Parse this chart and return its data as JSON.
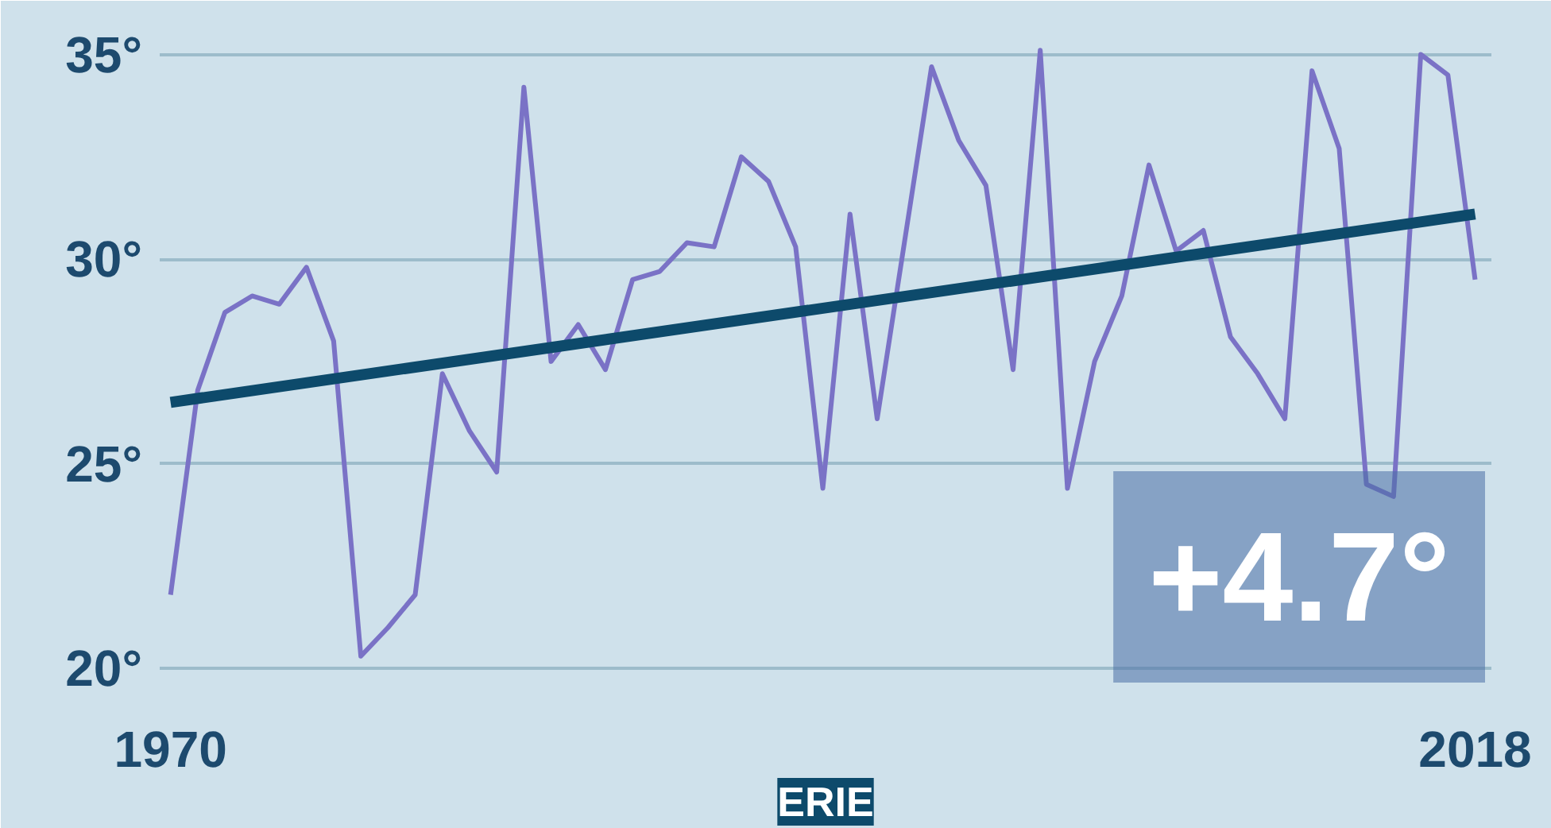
{
  "chart_data": {
    "type": "line",
    "title": "ERIE",
    "annotations": [
      "+4.7°"
    ],
    "series": [
      {
        "color": "#7a72c6",
        "x": [
          1970,
          1971,
          1972,
          1973,
          1974,
          1975,
          1976,
          1977,
          1978,
          1979,
          1980,
          1981,
          1982,
          1983,
          1984,
          1985,
          1986,
          1987,
          1988,
          1989,
          1990,
          1991,
          1992,
          1993,
          1994,
          1995,
          1996,
          1997,
          1998,
          1999,
          2000,
          2001,
          2002,
          2003,
          2004,
          2005,
          2006,
          2007,
          2008,
          2009,
          2010,
          2011,
          2012,
          2013,
          2014,
          2015,
          2016,
          2017,
          2018
        ],
        "values": [
          21.8,
          26.8,
          28.7,
          29.1,
          28.9,
          29.8,
          28.0,
          20.3,
          21.0,
          21.8,
          27.2,
          25.8,
          24.8,
          34.2,
          27.5,
          28.4,
          27.3,
          29.5,
          29.7,
          30.4,
          30.3,
          32.5,
          31.9,
          30.3,
          24.4,
          31.1,
          26.1,
          30.4,
          34.7,
          32.9,
          31.8,
          27.3,
          35.1,
          24.4,
          27.5,
          29.1,
          32.3,
          30.2,
          30.7,
          28.1,
          27.2,
          26.1,
          34.6,
          32.7,
          24.5,
          24.2,
          35.0,
          34.5,
          29.5
        ]
      },
      {
        "color": "#0d4a6b",
        "x": [
          1970,
          2018
        ],
        "values": [
          26.5,
          31.1
        ]
      }
    ],
    "xlim": [
      1969.6,
      2018.6
    ],
    "ylim": [
      19.5,
      36
    ],
    "xticks": [
      1970,
      2018
    ],
    "yticks": [
      {
        "value": 20,
        "label": "20°"
      },
      {
        "value": 25,
        "label": "25°"
      },
      {
        "value": 30,
        "label": "30°"
      },
      {
        "value": 35,
        "label": "35°"
      }
    ],
    "grid": "y",
    "marker": "none",
    "line_style": "solid"
  }
}
